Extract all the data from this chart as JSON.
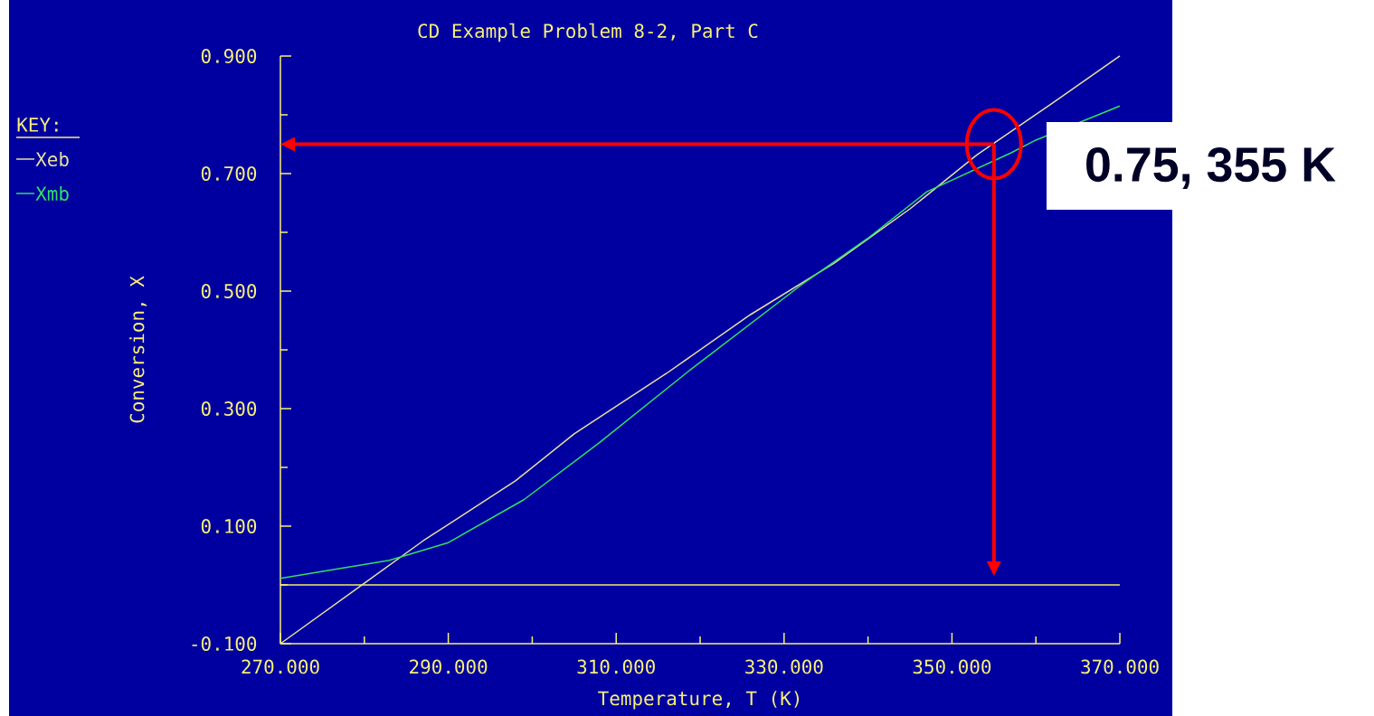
{
  "chart_data": {
    "type": "line",
    "title": "CD Example Problem 8-2, Part C",
    "xlabel": "Temperature, T (K)",
    "ylabel": "Conversion, X",
    "legend_title": "KEY:",
    "legend": "left",
    "marker": "none",
    "xlim": [
      270,
      370
    ],
    "ylim": [
      -0.1,
      0.9
    ],
    "xticks": [
      {
        "value": 270,
        "label": "270.000"
      },
      {
        "value": 280,
        "label": null
      },
      {
        "value": 290,
        "label": "290.000"
      },
      {
        "value": 300,
        "label": null
      },
      {
        "value": 310,
        "label": "310.000"
      },
      {
        "value": 320,
        "label": null
      },
      {
        "value": 330,
        "label": "330.000"
      },
      {
        "value": 340,
        "label": null
      },
      {
        "value": 350,
        "label": "350.000"
      },
      {
        "value": 360,
        "label": null
      },
      {
        "value": 370,
        "label": "370.000"
      }
    ],
    "yticks": [
      {
        "value": -0.1,
        "label": "-0.100"
      },
      {
        "value": 0,
        "label": null
      },
      {
        "value": 0.1,
        "label": "0.100"
      },
      {
        "value": 0.2,
        "label": null
      },
      {
        "value": 0.3,
        "label": "0.300"
      },
      {
        "value": 0.4,
        "label": null
      },
      {
        "value": 0.5,
        "label": "0.500"
      },
      {
        "value": 0.6,
        "label": null
      },
      {
        "value": 0.7,
        "label": "0.700"
      },
      {
        "value": 0.8,
        "label": null
      },
      {
        "value": 0.9,
        "label": "0.900"
      }
    ],
    "ref_lines": [
      {
        "axis": "y",
        "value": 0,
        "color": "#f0f060"
      }
    ],
    "annotations": [
      {
        "text": "0.75, 355 K",
        "x": 355,
        "y": 0.75
      }
    ],
    "series": [
      {
        "name": "Xeb",
        "color": "#e8e0a0",
        "x": [
          270,
          280,
          287,
          298,
          305,
          316,
          326,
          336,
          345,
          353,
          362,
          370
        ],
        "values": [
          -0.1,
          0.003,
          0.075,
          0.177,
          0.257,
          0.36,
          0.46,
          0.548,
          0.64,
          0.732,
          0.82,
          0.9
        ]
      },
      {
        "name": "Xmb",
        "color": "#30e060",
        "x": [
          270,
          283,
          290,
          299,
          308,
          319,
          332,
          340,
          347,
          357,
          360,
          370
        ],
        "values": [
          0.011,
          0.042,
          0.072,
          0.145,
          0.242,
          0.368,
          0.51,
          0.59,
          0.669,
          0.735,
          0.757,
          0.815
        ]
      }
    ]
  }
}
